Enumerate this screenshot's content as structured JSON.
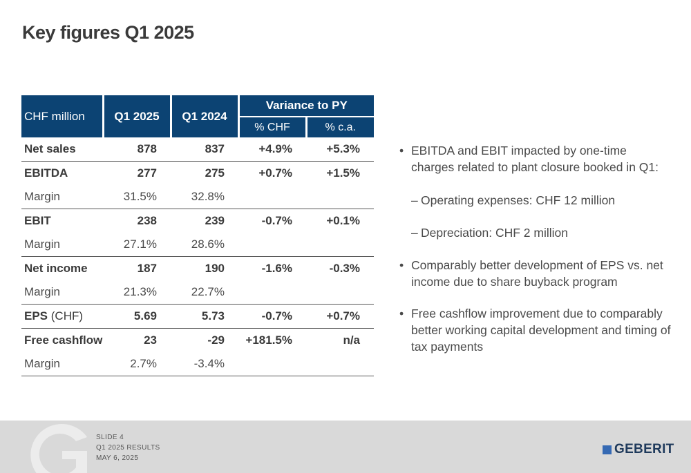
{
  "title": "Key figures Q1 2025",
  "table": {
    "header": {
      "unit": "CHF million",
      "col_q1_2025": "Q1 2025",
      "col_q1_2024": "Q1 2024",
      "variance": "Variance to PY",
      "var_chf": "% CHF",
      "var_ca": "% c.a."
    },
    "rows": [
      {
        "label": "Net sales",
        "unit": "",
        "q1_2025": "878",
        "q1_2024": "837",
        "var_chf": "+4.9%",
        "var_ca": "+5.3%"
      },
      {
        "label": "EBITDA",
        "unit": "",
        "q1_2025": "277",
        "q1_2024": "275",
        "var_chf": "+0.7%",
        "var_ca": "+1.5%"
      },
      {
        "label": "Margin",
        "q1_2025": "31.5%",
        "q1_2024": "32.8%"
      },
      {
        "label": "EBIT",
        "unit": "",
        "q1_2025": "238",
        "q1_2024": "239",
        "var_chf": "-0.7%",
        "var_ca": "+0.1%"
      },
      {
        "label": "Margin",
        "q1_2025": "27.1%",
        "q1_2024": "28.6%"
      },
      {
        "label": "Net income",
        "unit": "",
        "q1_2025": "187",
        "q1_2024": "190",
        "var_chf": "-1.6%",
        "var_ca": "-0.3%"
      },
      {
        "label": "Margin",
        "q1_2025": "21.3%",
        "q1_2024": "22.7%"
      },
      {
        "label": "EPS",
        "unit": "(CHF)",
        "q1_2025": "5.69",
        "q1_2024": "5.73",
        "var_chf": "-0.7%",
        "var_ca": "+0.7%"
      },
      {
        "label": "Free cashflow",
        "unit": "",
        "q1_2025": "23",
        "q1_2024": "-29",
        "var_chf": "+181.5%",
        "var_ca": "n/a"
      },
      {
        "label": "Margin",
        "q1_2025": "2.7%",
        "q1_2024": "-3.4%"
      }
    ]
  },
  "bullets": {
    "b1": "EBITDA and EBIT impacted by one-time charges related to plant closure booked in Q1:",
    "d1": "Operating expenses: CHF 12 million",
    "d2": "Depreciation: CHF 2 million",
    "b2": "Comparably better development of EPS vs. net income due to share buyback program",
    "b3": "Free cashflow improvement due to comparably better working capital development and timing of tax payments",
    "bullet_mark": "•",
    "dash_mark": "–"
  },
  "footer": {
    "slide": "SLIDE 4",
    "results": "Q1 2025 RESULTS",
    "date": "MAY 6, 2025",
    "logo": "GEBERIT",
    "logo_color": "#3569b3"
  },
  "colors": {
    "header_bg": "#0c4373",
    "footer_bg": "#d9d9d9"
  }
}
